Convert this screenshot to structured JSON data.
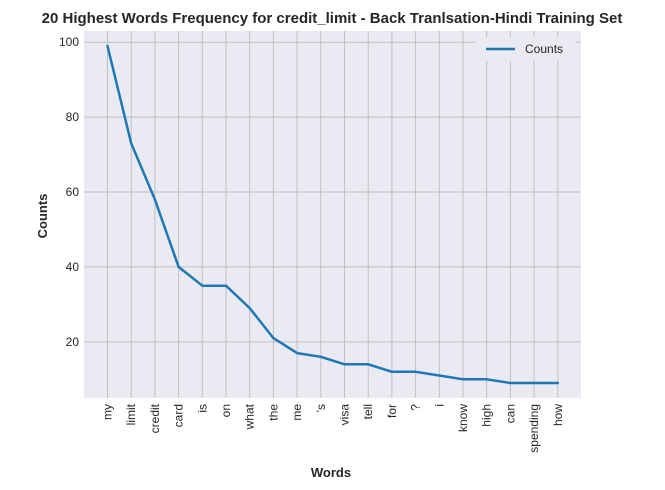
{
  "chart_data": {
    "type": "line",
    "title": "20 Highest Words Frequency for credit_limit - Back Tranlsation-Hindi Training Set",
    "xlabel": "Words",
    "ylabel": "Counts",
    "categories": [
      "my",
      "limit",
      "credit",
      "card",
      "is",
      "on",
      "what",
      "the",
      "me",
      "'s",
      "visa",
      "tell",
      "for",
      "?",
      "i",
      "know",
      "high",
      "can",
      "spending",
      "how"
    ],
    "series": [
      {
        "name": "Counts",
        "color": "#1f77b4",
        "values": [
          99,
          73,
          58,
          40,
          35,
          35,
          29,
          21,
          17,
          16,
          14,
          14,
          12,
          12,
          11,
          10,
          10,
          9,
          9,
          9
        ]
      }
    ],
    "ylim": [
      5,
      103
    ],
    "yticks": [
      20,
      40,
      60,
      80,
      100
    ],
    "grid": true,
    "legend_position": "top-right",
    "background_color": "#eaeaf2",
    "grid_color": "#c0c0c0"
  }
}
